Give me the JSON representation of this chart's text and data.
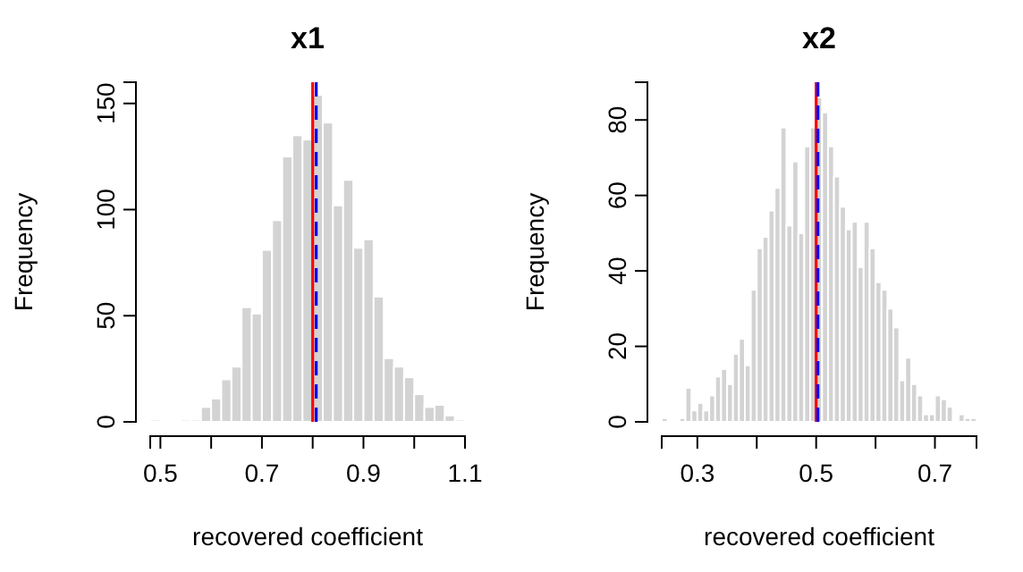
{
  "chart_data": [
    {
      "type": "histogram",
      "title": "x1",
      "xlabel": "recovered coefficient",
      "ylabel": "Frequency",
      "color": "#d3d3d3",
      "bins": [
        0.48,
        0.5,
        0.52,
        0.54,
        0.56,
        0.58,
        0.6,
        0.62,
        0.64,
        0.66,
        0.68,
        0.7,
        0.72,
        0.74,
        0.76,
        0.78,
        0.8,
        0.82,
        0.84,
        0.86,
        0.88,
        0.9,
        0.92,
        0.94,
        0.96,
        0.98,
        1.0,
        1.02,
        1.04,
        1.06,
        1.08,
        1.1
      ],
      "values": [
        1,
        0,
        0,
        1,
        1,
        7,
        11,
        20,
        26,
        54,
        51,
        81,
        95,
        125,
        135,
        133,
        154,
        141,
        102,
        114,
        82,
        86,
        59,
        30,
        26,
        21,
        13,
        7,
        8,
        3,
        1
      ],
      "xlim": [
        0.48,
        1.1
      ],
      "ylim": [
        0,
        160
      ],
      "xticks": [
        0.5,
        {
          "value": 0.6,
          "label": null
        },
        0.7,
        {
          "value": 0.8,
          "label": null
        },
        0.9,
        {
          "value": 1.0,
          "label": null
        },
        1.1
      ],
      "yticks": [
        0,
        50,
        100,
        150
      ],
      "grid": false,
      "ref_lines": [
        {
          "axis": "x",
          "value": 0.8,
          "color": "#ff0000",
          "line_style": "solid"
        },
        {
          "axis": "x",
          "value": 0.807,
          "color": "#0000ff",
          "line_style": "dashed"
        }
      ]
    },
    {
      "type": "histogram",
      "title": "x2",
      "xlabel": "recovered coefficient",
      "ylabel": "Frequency",
      "color": "#d3d3d3",
      "bins": [
        0.24,
        0.25,
        0.26,
        0.27,
        0.28,
        0.29,
        0.3,
        0.31,
        0.32,
        0.33,
        0.34,
        0.35,
        0.36,
        0.37,
        0.38,
        0.39,
        0.4,
        0.41,
        0.42,
        0.43,
        0.44,
        0.45,
        0.46,
        0.47,
        0.48,
        0.49,
        0.5,
        0.51,
        0.52,
        0.53,
        0.54,
        0.55,
        0.56,
        0.57,
        0.58,
        0.59,
        0.6,
        0.61,
        0.62,
        0.63,
        0.64,
        0.65,
        0.66,
        0.67,
        0.68,
        0.69,
        0.7,
        0.71,
        0.72,
        0.73,
        0.74,
        0.75,
        0.76,
        0.77
      ],
      "values": [
        1,
        0,
        0,
        1,
        9,
        3,
        5,
        3,
        7,
        12,
        14,
        10,
        18,
        22,
        15,
        35,
        46,
        49,
        56,
        62,
        78,
        52,
        69,
        50,
        73,
        78,
        86,
        82,
        73,
        65,
        57,
        51,
        53,
        41,
        53,
        46,
        37,
        35,
        30,
        25,
        11,
        17,
        10,
        7,
        2,
        2,
        7,
        6,
        4,
        0,
        2,
        1,
        1
      ],
      "xlim": [
        0.24,
        0.77
      ],
      "ylim": [
        0,
        90
      ],
      "xticks": [
        0.3,
        {
          "value": 0.4,
          "label": null
        },
        0.5,
        {
          "value": 0.6,
          "label": null
        },
        0.7
      ],
      "yticks": [
        0,
        20,
        40,
        60,
        80
      ],
      "grid": false,
      "ref_lines": [
        {
          "axis": "x",
          "value": 0.5,
          "color": "#ff0000",
          "line_style": "solid"
        },
        {
          "axis": "x",
          "value": 0.503,
          "color": "#0000ff",
          "line_style": "dashed"
        }
      ]
    }
  ]
}
